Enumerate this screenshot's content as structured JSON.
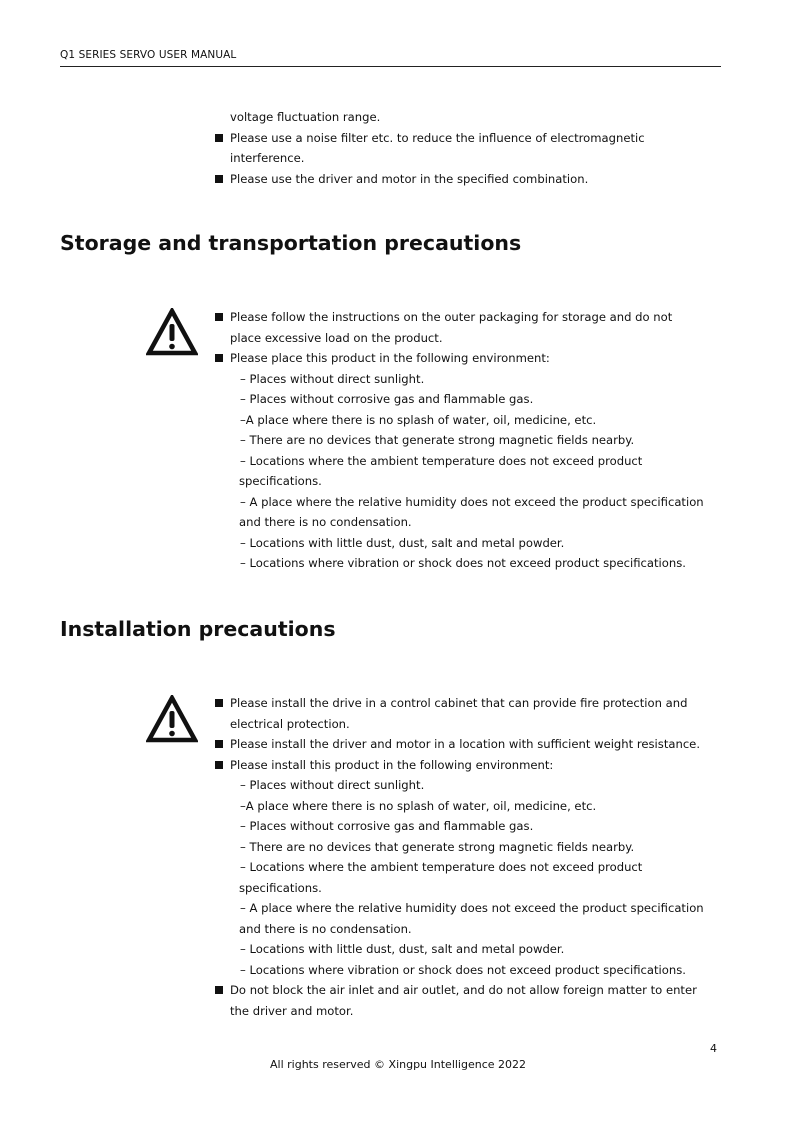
{
  "header": {
    "title": "Q1 SERIES SERVO USER MANUAL"
  },
  "intro": {
    "continuation": "voltage fluctuation range.",
    "bullets": [
      {
        "lines": [
          "Please use a noise filter etc. to reduce the influence of electromagnetic",
          "interference."
        ]
      },
      {
        "lines": [
          "Please use the driver and motor in the specified combination."
        ]
      }
    ]
  },
  "storage": {
    "heading": "Storage and transportation precautions",
    "icon": "warning-triangle-icon",
    "lines": [
      "Please follow the instructions on the outer packaging for storage and do not",
      "place excessive load on the product.",
      "Please place this product in the following environment:",
      "– Places without direct sunlight.",
      "– Places without corrosive gas and flammable gas.",
      "–A place where there is no splash of water, oil, medicine, etc.",
      "– There are no devices that generate strong magnetic fields nearby.",
      "– Locations where the ambient temperature does not exceed product",
      "specifications.",
      "– A place where the relative humidity does not exceed the product specification",
      "and there is no condensation.",
      "– Locations with little dust, dust, salt and metal powder.",
      "– Locations where vibration or shock does not exceed product specifications."
    ]
  },
  "installation": {
    "heading": "Installation precautions",
    "icon": "warning-triangle-icon",
    "lines": [
      "Please install the drive in a control cabinet that can provide fire protection and",
      "electrical protection.",
      "Please install the driver and motor in a location with sufficient weight resistance.",
      "Please install this product in the following environment:",
      "– Places without direct sunlight.",
      "–A place where there is no splash of water, oil, medicine, etc.",
      "– Places without corrosive gas and flammable gas.",
      "– There are no devices that generate strong magnetic fields nearby.",
      "– Locations where the ambient temperature does not exceed product",
      "specifications.",
      "– A place where the relative humidity does not exceed the product specification",
      "and there is no condensation.",
      "– Locations with little dust, dust, salt and metal powder.",
      "– Locations where vibration or shock does not exceed product specifications.",
      "Do not block the air inlet and air outlet, and do not allow foreign matter to enter",
      "the driver and motor."
    ]
  },
  "footer": {
    "page_number": "4",
    "copyright": "All rights reserved © Xingpu Intelligence 2022"
  }
}
